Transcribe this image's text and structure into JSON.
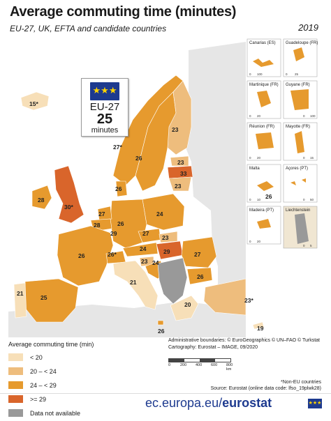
{
  "title": "Average commuting time (minutes)",
  "subtitle": "EU-27, UK, EFTA and candidate countries",
  "year": "2019",
  "eu_box": {
    "flag": "★★★",
    "label": "EU-27",
    "value": "25",
    "unit": "minutes"
  },
  "colors": {
    "lt20": "#f7dfb8",
    "c20_24": "#eebd7d",
    "c24_29": "#e69a2e",
    "ge29": "#d9652b",
    "na": "#999999",
    "sea": "#ffffff",
    "outside": "#e6e6e6"
  },
  "chart_data": {
    "type": "choropleth",
    "legend_title": "Average commuting time (min)",
    "classes": [
      "< 20",
      "20 – < 24",
      "24 – < 29",
      ">= 29",
      "Data not available"
    ],
    "values": [
      {
        "label": "15*"
      },
      {
        "label": "27*"
      },
      {
        "label": "26"
      },
      {
        "label": "23"
      },
      {
        "label": "23"
      },
      {
        "label": "33"
      },
      {
        "label": "23"
      },
      {
        "label": "28"
      },
      {
        "label": "30*"
      },
      {
        "label": "26"
      },
      {
        "label": "27"
      },
      {
        "label": "28"
      },
      {
        "label": "26"
      },
      {
        "label": "24"
      },
      {
        "label": "29"
      },
      {
        "label": "27"
      },
      {
        "label": "26"
      },
      {
        "label": "26*"
      },
      {
        "label": "24"
      },
      {
        "label": "23"
      },
      {
        "label": "23"
      },
      {
        "label": "29"
      },
      {
        "label": "27"
      },
      {
        "label": "24"
      },
      {
        "label": "21"
      },
      {
        "label": "25"
      },
      {
        "label": "21"
      },
      {
        "label": "26"
      },
      {
        "label": "20"
      },
      {
        "label": "23*"
      },
      {
        "label": "19"
      },
      {
        "label": "26"
      },
      {
        "label": "26"
      }
    ]
  },
  "insets": [
    "Canarias (ES)",
    "Guadeloupe (FR)",
    "Martinique (FR)",
    "Guyane (FR)",
    "Réunion (FR)",
    "Mayotte (FR)",
    "Malta",
    "Açores (PT)",
    "Madeira (PT)",
    "Liechtenstein"
  ],
  "inset_scales": [
    "0",
    "100",
    "0",
    "25",
    "0",
    "20",
    "0",
    "100",
    "0",
    "20",
    "0",
    "15",
    "0",
    "10",
    "0",
    "50",
    "0",
    "20",
    "0",
    "5"
  ],
  "credits": {
    "line1": "Administrative boundaries: © EuroGeographics © UN–FAO © Turkstat",
    "line2": "Cartography: Eurostat – IMAGE, 09/2020",
    "scale": [
      "0",
      "200",
      "400",
      "600",
      "800 km"
    ]
  },
  "footnote": {
    "line1": "*Non-EU countries",
    "line2": "Source: Eurostat (online data code: lfso_19plwk28)"
  },
  "footer": {
    "url_plain": "ec.europa.eu/",
    "url_bold": "eurostat"
  }
}
